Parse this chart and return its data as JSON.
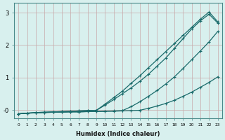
{
  "xlabel": "Humidex (Indice chaleur)",
  "bg_color": "#d8f0ee",
  "line_color": "#1a6b6b",
  "xlim": [
    -0.5,
    23.5
  ],
  "ylim": [
    -0.25,
    3.3
  ],
  "xticks": [
    0,
    1,
    2,
    3,
    4,
    5,
    6,
    7,
    8,
    9,
    10,
    11,
    12,
    13,
    14,
    15,
    16,
    17,
    18,
    19,
    20,
    21,
    22,
    23
  ],
  "yticks": [
    0,
    1,
    2,
    3
  ],
  "yticklabels": [
    "-0",
    "1",
    "2",
    "3"
  ],
  "line1_x": [
    0,
    1,
    2,
    3,
    4,
    5,
    6,
    7,
    8,
    9,
    10,
    11,
    12,
    13,
    14,
    15,
    16,
    17,
    18,
    19,
    20,
    21,
    22,
    23
  ],
  "line1_y": [
    -0.12,
    -0.1,
    -0.08,
    -0.07,
    -0.06,
    -0.05,
    -0.04,
    -0.03,
    -0.02,
    -0.01,
    0.18,
    0.38,
    0.58,
    0.82,
    1.05,
    1.3,
    1.55,
    1.8,
    2.05,
    2.3,
    2.55,
    2.8,
    3.02,
    2.72
  ],
  "line2_x": [
    0,
    1,
    2,
    3,
    4,
    5,
    6,
    7,
    8,
    9,
    10,
    11,
    12,
    13,
    14,
    15,
    16,
    17,
    18,
    19,
    20,
    21,
    22,
    23
  ],
  "line2_y": [
    -0.12,
    -0.1,
    -0.08,
    -0.07,
    -0.06,
    -0.05,
    -0.04,
    -0.03,
    -0.02,
    -0.01,
    0.15,
    0.32,
    0.5,
    0.68,
    0.88,
    1.1,
    1.35,
    1.6,
    1.9,
    2.2,
    2.5,
    2.75,
    2.95,
    2.68
  ],
  "line3_x": [
    0,
    1,
    2,
    3,
    4,
    5,
    6,
    7,
    8,
    9,
    10,
    11,
    12,
    13,
    14,
    15,
    16,
    17,
    18,
    19,
    20,
    21,
    22,
    23
  ],
  "line3_y": [
    -0.12,
    -0.1,
    -0.09,
    -0.08,
    -0.07,
    -0.07,
    -0.06,
    -0.06,
    -0.05,
    -0.05,
    -0.04,
    -0.03,
    -0.02,
    0.1,
    0.25,
    0.42,
    0.6,
    0.8,
    1.02,
    1.28,
    1.55,
    1.82,
    2.1,
    2.42
  ],
  "line4_x": [
    0,
    1,
    2,
    3,
    4,
    5,
    6,
    7,
    8,
    9,
    10,
    11,
    12,
    13,
    14,
    15,
    16,
    17,
    18,
    19,
    20,
    21,
    22,
    23
  ],
  "line4_y": [
    -0.12,
    -0.1,
    -0.09,
    -0.08,
    -0.07,
    -0.07,
    -0.06,
    -0.06,
    -0.05,
    -0.05,
    -0.04,
    -0.04,
    -0.03,
    -0.02,
    -0.01,
    0.05,
    0.12,
    0.2,
    0.3,
    0.42,
    0.55,
    0.7,
    0.85,
    1.02
  ]
}
